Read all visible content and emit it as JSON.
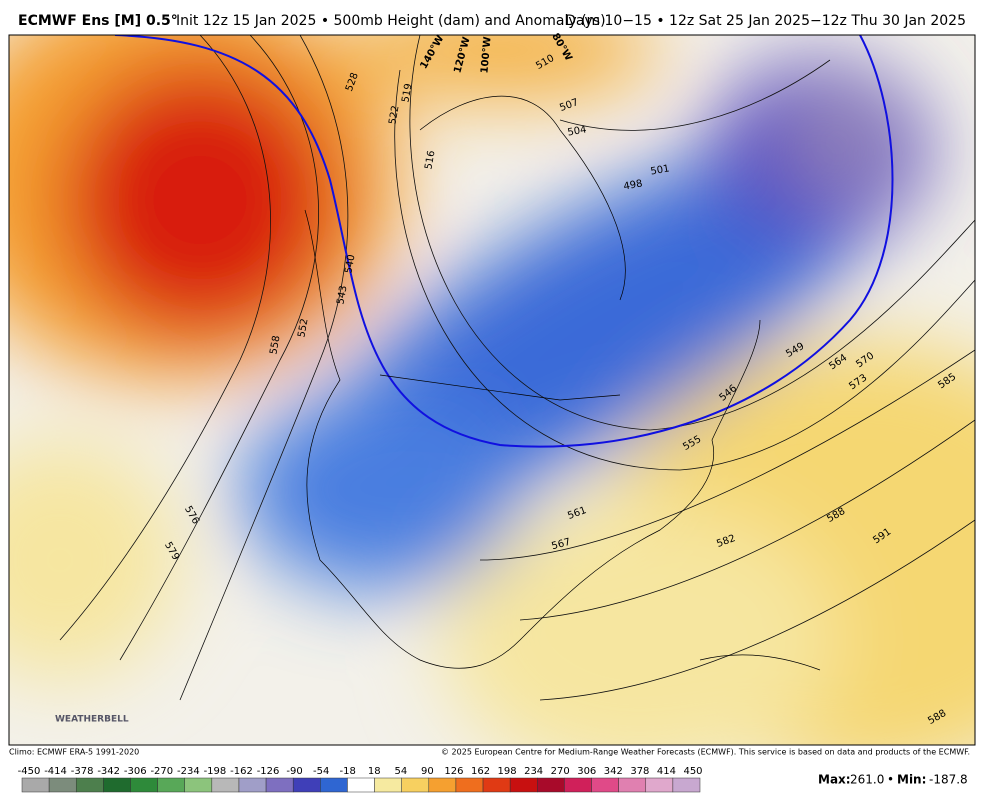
{
  "header": {
    "title": "ECMWF Ens [M] 0.5°",
    "subtitle": "Init 12z 15 Jan 2025 • 500mb Height (dam) and Anomaly (m)",
    "valid": "Days 10−15 • 12z Sat 25 Jan 2025−12z Thu 30 Jan 2025"
  },
  "map": {
    "longitudes": [
      "140°W",
      "120°W",
      "100°W",
      "80°W"
    ],
    "contour_labels": [
      528,
      519,
      522,
      516,
      510,
      507,
      504,
      501,
      498,
      540,
      543,
      552,
      558,
      576,
      579,
      549,
      564,
      570,
      573,
      585,
      546,
      555,
      561,
      567,
      582,
      588,
      591,
      588
    ],
    "logo": "WEATHERBELL"
  },
  "footer": {
    "climo": "Climo: ECMWF ERA-5 1991-2020",
    "copyright": "© 2025 European Centre for Medium-Range Weather Forecasts (ECMWF). This service is based on data and products of the ECMWF.",
    "colorbar": {
      "labels": [
        -450,
        -414,
        -378,
        -342,
        -306,
        -270,
        -234,
        -198,
        -162,
        -126,
        -90,
        -54,
        -18,
        18,
        54,
        90,
        126,
        162,
        198,
        234,
        270,
        306,
        342,
        378,
        414,
        450
      ],
      "colors": [
        "#a9a9a9",
        "#7c8c7c",
        "#4d7f4d",
        "#1f6b2e",
        "#2e8a3a",
        "#58a858",
        "#8cc47c",
        "#b8b8b8",
        "#a09ec8",
        "#7e6fc0",
        "#3f3fb8",
        "#2f66d2",
        "#ffffff",
        "#f6eaa0",
        "#f7d060",
        "#f5a030",
        "#ef6e1e",
        "#e03a14",
        "#c81010",
        "#a80a2a",
        "#d0205a",
        "#e04a88",
        "#e080b0",
        "#e0a8cc",
        "#c8a8d0"
      ]
    },
    "max_label": "Max:",
    "max": "261.0",
    "separator": "•",
    "min_label": "Min:",
    "min": "-187.8"
  }
}
